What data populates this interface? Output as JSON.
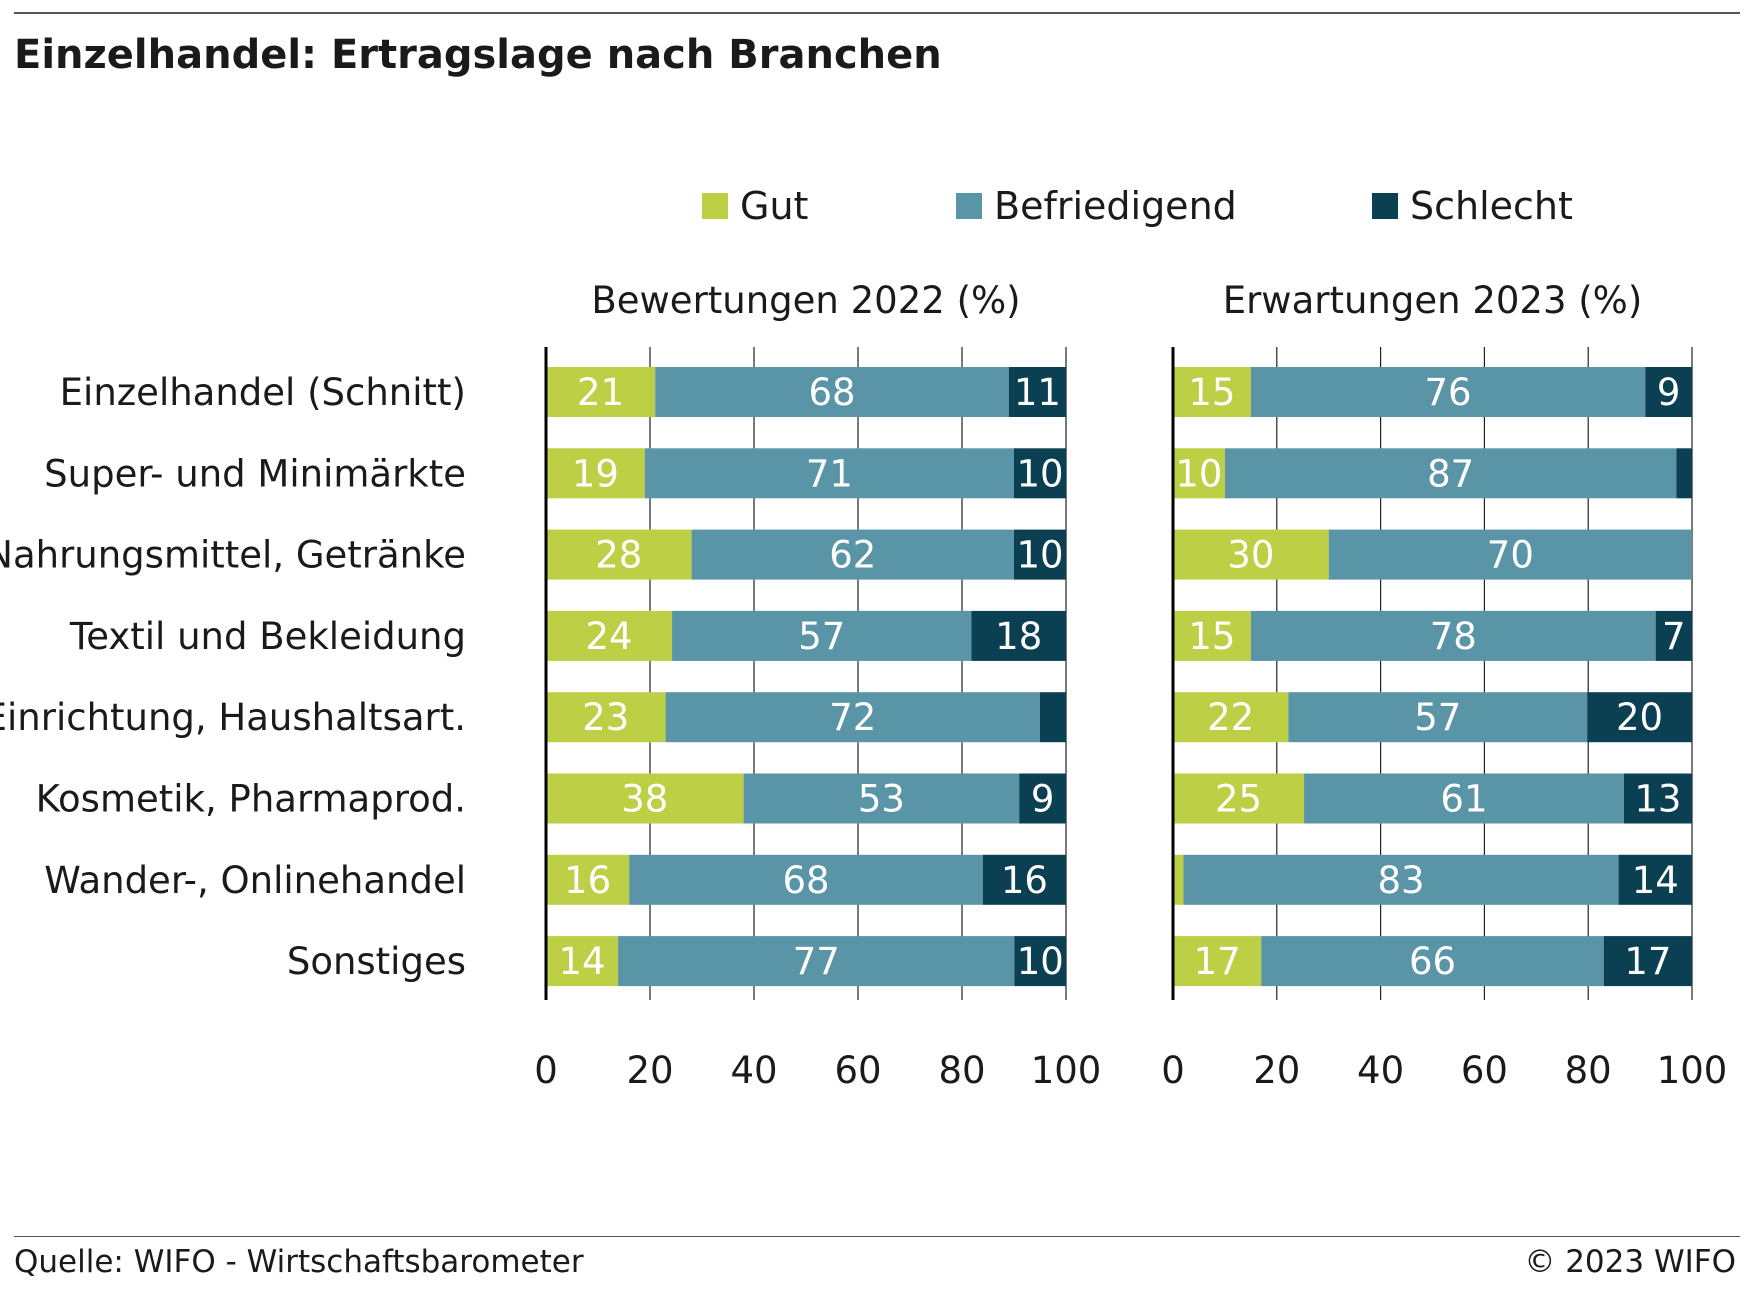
{
  "title": "Einzelhandel: Ertragslage nach Branchen",
  "source": "Quelle: WIFO - Wirtschaftsbarometer",
  "copyright": "© 2023 WIFO",
  "colors": {
    "gut": "#bccf45",
    "befriedigend": "#5a95a7",
    "schlecht": "#0b3f52"
  },
  "chart_data": {
    "type": "bar",
    "orientation": "horizontal",
    "stacked": true,
    "legend": [
      "Gut",
      "Befriedigend",
      "Schlecht"
    ],
    "legend_position": "top",
    "categories": [
      "Einzelhandel (Schnitt)",
      "Super- und Minimärkte",
      "Nahrungsmittel, Getränke",
      "Textil und Bekleidung",
      "Einrichtung, Haushaltsart.",
      "Kosmetik, Pharmaprod.",
      "Wander-, Onlinehandel",
      "Sonstiges"
    ],
    "xlim": [
      0,
      100
    ],
    "xticks": [
      0,
      20,
      40,
      60,
      80,
      100
    ],
    "grid": true,
    "panels": [
      {
        "title": "Bewertungen 2022 (%)",
        "series": [
          {
            "name": "Gut",
            "values": [
              21,
              19,
              28,
              24,
              23,
              38,
              16,
              14
            ]
          },
          {
            "name": "Befriedigend",
            "values": [
              68,
              71,
              62,
              57,
              72,
              53,
              68,
              77
            ]
          },
          {
            "name": "Schlecht",
            "values": [
              11,
              10,
              10,
              18,
              5,
              9,
              16,
              10
            ]
          }
        ],
        "labels": {
          "Gut": [
            "21",
            "19",
            "28",
            "24",
            "23",
            "38",
            "16",
            "14"
          ],
          "Befriedigend": [
            "68",
            "71",
            "62",
            "57",
            "72",
            "53",
            "68",
            "77"
          ],
          "Schlecht": [
            "11",
            "10",
            "10",
            "18",
            "",
            "9",
            "16",
            "10"
          ]
        }
      },
      {
        "title": "Erwartungen 2023 (%)",
        "series": [
          {
            "name": "Gut",
            "values": [
              15,
              10,
              30,
              15,
              22,
              25,
              2,
              17
            ]
          },
          {
            "name": "Befriedigend",
            "values": [
              76,
              87,
              70,
              78,
              57,
              61,
              83,
              66
            ]
          },
          {
            "name": "Schlecht",
            "values": [
              9,
              3,
              0,
              7,
              20,
              13,
              14,
              17
            ]
          }
        ],
        "labels": {
          "Gut": [
            "15",
            "10",
            "30",
            "15",
            "22",
            "25",
            "",
            "17"
          ],
          "Befriedigend": [
            "76",
            "87",
            "70",
            "78",
            "57",
            "61",
            "83",
            "66"
          ],
          "Schlecht": [
            "9",
            "",
            "",
            "7",
            "20",
            "13",
            "14",
            "17"
          ]
        }
      }
    ]
  }
}
